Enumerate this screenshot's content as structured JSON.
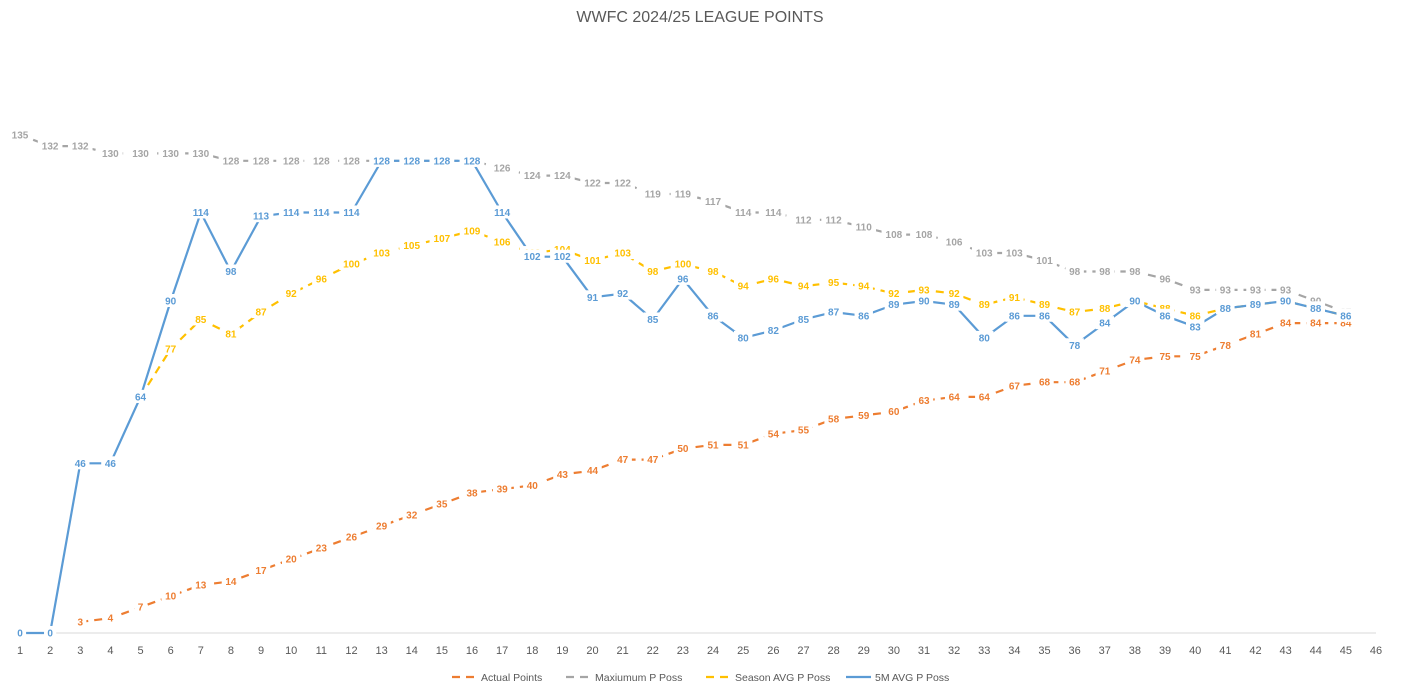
{
  "chart_data": {
    "type": "line",
    "title": "WWFC 2024/25 LEAGUE POINTS",
    "xlabel": "",
    "ylabel": "",
    "x": [
      1,
      2,
      3,
      4,
      5,
      6,
      7,
      8,
      9,
      10,
      11,
      12,
      13,
      14,
      15,
      16,
      17,
      18,
      19,
      20,
      21,
      22,
      23,
      24,
      25,
      26,
      27,
      28,
      29,
      30,
      31,
      32,
      33,
      34,
      35,
      36,
      37,
      38,
      39,
      40,
      41,
      42,
      43,
      44,
      45,
      46
    ],
    "ylim": [
      0,
      135
    ],
    "grid": false,
    "legend_position": "bottom",
    "series": [
      {
        "name": "Actual Points",
        "color": "#ED7D31",
        "dash": true,
        "values": [
          null,
          null,
          3,
          4,
          7,
          10,
          13,
          14,
          17,
          20,
          23,
          26,
          29,
          32,
          35,
          38,
          39,
          40,
          43,
          44,
          47,
          47,
          50,
          51,
          51,
          54,
          55,
          58,
          59,
          60,
          63,
          64,
          64,
          67,
          68,
          68,
          71,
          74,
          75,
          75,
          78,
          81,
          84,
          84,
          84,
          null
        ]
      },
      {
        "name": "Maxiumum P Poss",
        "color": "#A5A5A5",
        "dash": true,
        "values": [
          135,
          132,
          132,
          130,
          130,
          130,
          130,
          128,
          128,
          128,
          128,
          128,
          128,
          128,
          128,
          128,
          126,
          124,
          124,
          122,
          122,
          119,
          119,
          117,
          114,
          114,
          112,
          112,
          110,
          108,
          108,
          106,
          103,
          103,
          101,
          98,
          98,
          98,
          96,
          93,
          93,
          93,
          93,
          90,
          87,
          null
        ]
      },
      {
        "name": "Season AVG P Poss",
        "color": "#FFC000",
        "dash": true,
        "values": [
          null,
          null,
          null,
          null,
          64,
          77,
          85,
          81,
          87,
          92,
          96,
          100,
          103,
          105,
          107,
          109,
          106,
          103,
          104,
          101,
          103,
          98,
          100,
          98,
          94,
          96,
          94,
          95,
          94,
          92,
          93,
          92,
          89,
          91,
          89,
          87,
          88,
          90,
          88,
          86,
          88,
          89,
          90,
          88,
          86,
          null
        ]
      },
      {
        "name": "5M AVG P Poss",
        "color": "#5B9BD5",
        "dash": false,
        "values": [
          0,
          0,
          46,
          46,
          64,
          90,
          114,
          98,
          113,
          114,
          114,
          114,
          128,
          128,
          128,
          128,
          114,
          102,
          102,
          91,
          92,
          85,
          96,
          86,
          80,
          82,
          85,
          87,
          86,
          89,
          90,
          89,
          80,
          86,
          86,
          78,
          84,
          90,
          86,
          83,
          88,
          89,
          90,
          88,
          86,
          null
        ]
      }
    ]
  }
}
